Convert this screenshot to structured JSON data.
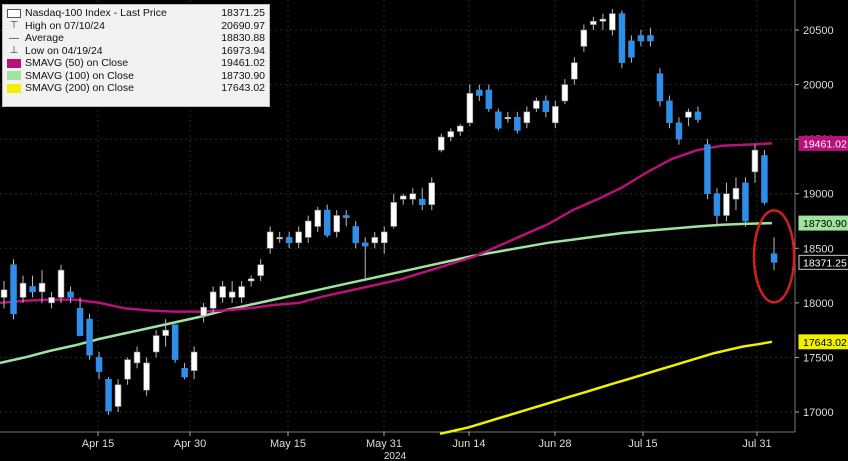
{
  "legend": {
    "items": [
      {
        "label": "Nasdaq-100 Index - Last Price",
        "value": "18371.25",
        "swatch": "box",
        "color": "#ffffff"
      },
      {
        "label": "High on 07/10/24",
        "value": "20690.97",
        "swatch": "high",
        "color": "#333333"
      },
      {
        "label": "Average",
        "value": "18830.88",
        "swatch": "avg",
        "color": "#333333"
      },
      {
        "label": "Low on 04/19/24",
        "value": "16973.94",
        "swatch": "low",
        "color": "#333333"
      },
      {
        "label": "SMAVG (50)  on Close",
        "value": "19461.02",
        "swatch": "fill",
        "color": "#b8127a"
      },
      {
        "label": "SMAVG (100)  on Close",
        "value": "18730.90",
        "swatch": "fill",
        "color": "#9fe39f"
      },
      {
        "label": "SMAVG (200)  on Close",
        "value": "17643.02",
        "swatch": "fill",
        "color": "#f0f000"
      }
    ]
  },
  "chart_data": {
    "type": "candlestick",
    "y_ticks": [
      17000,
      17500,
      18000,
      18500,
      19000,
      19500,
      20000,
      20500
    ],
    "ylim": [
      16800,
      20800
    ],
    "x_ticks": [
      "Apr 15",
      "Apr 30",
      "May 15",
      "May 31",
      "Jun 14",
      "Jun 28",
      "Jul 15",
      "Jul 31"
    ],
    "x_year": "2024",
    "up_color": "#ffffff",
    "down_color": "#2e8ee8",
    "candles": [
      {
        "o": 18050,
        "h": 18200,
        "l": 17950,
        "c": 18120
      },
      {
        "o": 18350,
        "h": 18400,
        "l": 17850,
        "c": 17900
      },
      {
        "o": 18050,
        "h": 18250,
        "l": 18000,
        "c": 18180
      },
      {
        "o": 18150,
        "h": 18250,
        "l": 18050,
        "c": 18100
      },
      {
        "o": 18100,
        "h": 18300,
        "l": 18000,
        "c": 18180
      },
      {
        "o": 18000,
        "h": 18100,
        "l": 17950,
        "c": 18050
      },
      {
        "o": 18050,
        "h": 18350,
        "l": 18000,
        "c": 18300
      },
      {
        "o": 18100,
        "h": 18150,
        "l": 18000,
        "c": 18050
      },
      {
        "o": 17950,
        "h": 18050,
        "l": 17700,
        "c": 17700
      },
      {
        "o": 17850,
        "h": 17900,
        "l": 17480,
        "c": 17520
      },
      {
        "o": 17500,
        "h": 17550,
        "l": 17300,
        "c": 17370
      },
      {
        "o": 17300,
        "h": 17320,
        "l": 16974,
        "c": 17010
      },
      {
        "o": 17050,
        "h": 17300,
        "l": 17000,
        "c": 17250
      },
      {
        "o": 17300,
        "h": 17500,
        "l": 17250,
        "c": 17480
      },
      {
        "o": 17450,
        "h": 17600,
        "l": 17400,
        "c": 17550
      },
      {
        "o": 17200,
        "h": 17500,
        "l": 17150,
        "c": 17450
      },
      {
        "o": 17550,
        "h": 17750,
        "l": 17500,
        "c": 17700
      },
      {
        "o": 17700,
        "h": 17850,
        "l": 17600,
        "c": 17750
      },
      {
        "o": 17800,
        "h": 17800,
        "l": 17450,
        "c": 17480
      },
      {
        "o": 17400,
        "h": 17450,
        "l": 17300,
        "c": 17320
      },
      {
        "o": 17380,
        "h": 17600,
        "l": 17300,
        "c": 17550
      },
      {
        "o": 17880,
        "h": 18000,
        "l": 17820,
        "c": 17960
      },
      {
        "o": 17950,
        "h": 18150,
        "l": 17900,
        "c": 18100
      },
      {
        "o": 18050,
        "h": 18200,
        "l": 18000,
        "c": 18150
      },
      {
        "o": 18050,
        "h": 18200,
        "l": 18000,
        "c": 18100
      },
      {
        "o": 18050,
        "h": 18200,
        "l": 18000,
        "c": 18150
      },
      {
        "o": 18200,
        "h": 18250,
        "l": 18150,
        "c": 18220
      },
      {
        "o": 18250,
        "h": 18400,
        "l": 18200,
        "c": 18350
      },
      {
        "o": 18500,
        "h": 18700,
        "l": 18450,
        "c": 18650
      },
      {
        "o": 18600,
        "h": 18650,
        "l": 18550,
        "c": 18600
      },
      {
        "o": 18600,
        "h": 18650,
        "l": 18500,
        "c": 18550
      },
      {
        "o": 18550,
        "h": 18700,
        "l": 18500,
        "c": 18650
      },
      {
        "o": 18600,
        "h": 18800,
        "l": 18550,
        "c": 18750
      },
      {
        "o": 18700,
        "h": 18880,
        "l": 18650,
        "c": 18850
      },
      {
        "o": 18850,
        "h": 18900,
        "l": 18600,
        "c": 18620
      },
      {
        "o": 18650,
        "h": 18850,
        "l": 18600,
        "c": 18800
      },
      {
        "o": 18800,
        "h": 18850,
        "l": 18700,
        "c": 18780
      },
      {
        "o": 18700,
        "h": 18750,
        "l": 18500,
        "c": 18550
      },
      {
        "o": 18550,
        "h": 18600,
        "l": 18200,
        "c": 18520
      },
      {
        "o": 18550,
        "h": 18650,
        "l": 18500,
        "c": 18600
      },
      {
        "o": 18550,
        "h": 18700,
        "l": 18450,
        "c": 18650
      },
      {
        "o": 18700,
        "h": 19000,
        "l": 18680,
        "c": 18920
      },
      {
        "o": 18950,
        "h": 19000,
        "l": 18900,
        "c": 18980
      },
      {
        "o": 18950,
        "h": 19050,
        "l": 18900,
        "c": 19000
      },
      {
        "o": 18950,
        "h": 19050,
        "l": 18850,
        "c": 18900
      },
      {
        "o": 18900,
        "h": 19150,
        "l": 18850,
        "c": 19100
      },
      {
        "o": 19400,
        "h": 19550,
        "l": 19380,
        "c": 19520
      },
      {
        "o": 19520,
        "h": 19600,
        "l": 19480,
        "c": 19570
      },
      {
        "o": 19570,
        "h": 19640,
        "l": 19530,
        "c": 19620
      },
      {
        "o": 19650,
        "h": 20000,
        "l": 19620,
        "c": 19920
      },
      {
        "o": 19950,
        "h": 20000,
        "l": 19850,
        "c": 19900
      },
      {
        "o": 19950,
        "h": 20000,
        "l": 19750,
        "c": 19780
      },
      {
        "o": 19750,
        "h": 19780,
        "l": 19580,
        "c": 19600
      },
      {
        "o": 19700,
        "h": 19750,
        "l": 19650,
        "c": 19700
      },
      {
        "o": 19700,
        "h": 19750,
        "l": 19550,
        "c": 19580
      },
      {
        "o": 19650,
        "h": 19800,
        "l": 19600,
        "c": 19750
      },
      {
        "o": 19780,
        "h": 19880,
        "l": 19750,
        "c": 19850
      },
      {
        "o": 19850,
        "h": 19900,
        "l": 19700,
        "c": 19750
      },
      {
        "o": 19650,
        "h": 19850,
        "l": 19600,
        "c": 19800
      },
      {
        "o": 19850,
        "h": 20050,
        "l": 19820,
        "c": 20000
      },
      {
        "o": 20050,
        "h": 20250,
        "l": 20000,
        "c": 20200
      },
      {
        "o": 20350,
        "h": 20550,
        "l": 20300,
        "c": 20500
      },
      {
        "o": 20550,
        "h": 20620,
        "l": 20500,
        "c": 20580
      },
      {
        "o": 20580,
        "h": 20650,
        "l": 20500,
        "c": 20600
      },
      {
        "o": 20500,
        "h": 20691,
        "l": 20450,
        "c": 20650
      },
      {
        "o": 20650,
        "h": 20680,
        "l": 20150,
        "c": 20200
      },
      {
        "o": 20400,
        "h": 20450,
        "l": 20200,
        "c": 20250
      },
      {
        "o": 20450,
        "h": 20500,
        "l": 20350,
        "c": 20400
      },
      {
        "o": 20450,
        "h": 20520,
        "l": 20350,
        "c": 20400
      },
      {
        "o": 20100,
        "h": 20150,
        "l": 19800,
        "c": 19850
      },
      {
        "o": 19850,
        "h": 19900,
        "l": 19600,
        "c": 19650
      },
      {
        "o": 19650,
        "h": 19700,
        "l": 19450,
        "c": 19500
      },
      {
        "o": 19700,
        "h": 19780,
        "l": 19620,
        "c": 19750
      },
      {
        "o": 19750,
        "h": 19800,
        "l": 19650,
        "c": 19680
      },
      {
        "o": 19450,
        "h": 19500,
        "l": 18950,
        "c": 19000
      },
      {
        "o": 19000,
        "h": 19050,
        "l": 18700,
        "c": 18800
      },
      {
        "o": 18800,
        "h": 19100,
        "l": 18750,
        "c": 19000
      },
      {
        "o": 18950,
        "h": 19150,
        "l": 18850,
        "c": 19050
      },
      {
        "o": 19100,
        "h": 19150,
        "l": 18700,
        "c": 18750
      },
      {
        "o": 19200,
        "h": 19450,
        "l": 19100,
        "c": 19400
      },
      {
        "o": 19350,
        "h": 19400,
        "l": 18900,
        "c": 18920
      },
      {
        "o": 18450,
        "h": 18600,
        "l": 18300,
        "c": 18371
      }
    ],
    "sma50": [
      18000,
      18020,
      18030,
      18030,
      18000,
      17950,
      17930,
      17920,
      17920,
      17930,
      17950,
      17980,
      18000,
      18060,
      18110,
      18160,
      18210,
      18280,
      18350,
      18420,
      18520,
      18620,
      18720,
      18850,
      18950,
      19060,
      19200,
      19320,
      19400,
      19440,
      19450,
      19461
    ],
    "sma100": [
      17450,
      17500,
      17560,
      17610,
      17670,
      17720,
      17770,
      17820,
      17870,
      17930,
      17980,
      18030,
      18080,
      18130,
      18180,
      18230,
      18280,
      18330,
      18380,
      18430,
      18470,
      18510,
      18550,
      18580,
      18610,
      18640,
      18660,
      18680,
      18700,
      18715,
      18725,
      18731
    ],
    "sma200": [
      16800,
      16830,
      16860,
      16900,
      16940,
      16980,
      17020,
      17060,
      17100,
      17140,
      17180,
      17220,
      17260,
      17300,
      17340,
      17380,
      17420,
      17460,
      17500,
      17540,
      17570,
      17600,
      17620,
      17643
    ],
    "labels": [
      {
        "text": "19461.02",
        "value": 19461.02,
        "bg": "#b8127a",
        "fg": "#ffffff"
      },
      {
        "text": "18730.90",
        "value": 18730.9,
        "bg": "#9fe39f",
        "fg": "#000000"
      },
      {
        "text": "18371.25",
        "value": 18371.25,
        "bg": "#000000",
        "fg": "#ffffff"
      },
      {
        "text": "17643.02",
        "value": 17643.02,
        "bg": "#f0f000",
        "fg": "#000000"
      }
    ],
    "highlight": "last-candle-circle"
  }
}
